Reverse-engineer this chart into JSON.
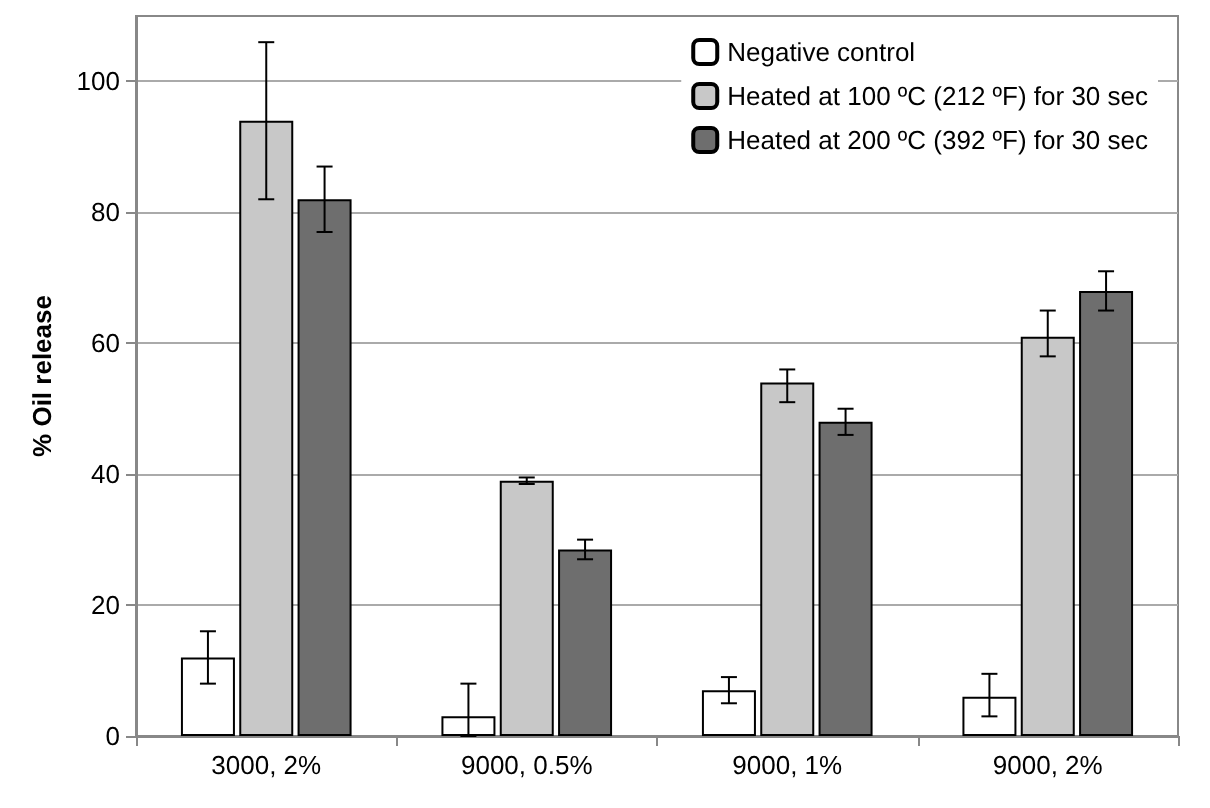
{
  "chart_data": {
    "type": "bar",
    "ylabel": "% Oil release",
    "categories": [
      "3000, 2%",
      "9000, 0.5%",
      "9000, 1%",
      "9000, 2%"
    ],
    "series": [
      {
        "name": "Negative control",
        "color": "#ffffff",
        "values": [
          12,
          3,
          7,
          6
        ],
        "errors": [
          [
            8,
            16
          ],
          [
            0,
            8
          ],
          [
            5,
            9
          ],
          [
            3,
            9.5
          ]
        ]
      },
      {
        "name": "Heated at 100 ºC (212 ºF) for 30 sec",
        "color": "#c8c8c8",
        "values": [
          94,
          39,
          54,
          61
        ],
        "errors": [
          [
            82,
            106
          ],
          [
            38.5,
            39.5
          ],
          [
            51,
            56
          ],
          [
            58,
            65
          ]
        ]
      },
      {
        "name": "Heated at 200 ºC (392 ºF) for 30 sec",
        "color": "#6e6e6e",
        "values": [
          82,
          28.5,
          48,
          68
        ],
        "errors": [
          [
            77,
            87
          ],
          [
            27,
            30
          ],
          [
            46,
            50
          ],
          [
            65,
            71
          ]
        ]
      }
    ],
    "ylim": [
      0,
      110
    ],
    "yticks": [
      0,
      20,
      40,
      60,
      80,
      100
    ],
    "grid": "y",
    "legend": "top right"
  }
}
